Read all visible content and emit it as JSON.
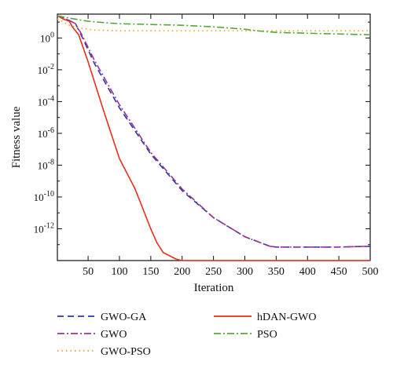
{
  "chart_data": {
    "type": "line",
    "title": "",
    "xlabel": "Iteration",
    "ylabel": "Fitness value",
    "yscale": "log",
    "xlim": [
      1,
      500
    ],
    "ylim_exponent": [
      -14,
      1.5
    ],
    "x_ticks": [
      50,
      100,
      150,
      200,
      250,
      300,
      350,
      400,
      450,
      500
    ],
    "y_ticks": [
      {
        "exp": 0,
        "base": "10",
        "power": "0"
      },
      {
        "exp": -2,
        "base": "10",
        "power": "-2"
      },
      {
        "exp": -4,
        "base": "10",
        "power": "-4"
      },
      {
        "exp": -6,
        "base": "10",
        "power": "-6"
      },
      {
        "exp": -8,
        "base": "10",
        "power": "-8"
      },
      {
        "exp": -10,
        "base": "10",
        "power": "-10"
      },
      {
        "exp": -12,
        "base": "10",
        "power": "-12"
      }
    ],
    "grid": false,
    "legend_position": "bottom, outside plot area, two columns",
    "series": [
      {
        "name": "GWO-GA",
        "color": "#2b3aa8",
        "dash": "8,5",
        "x": [
          1,
          20,
          30,
          40,
          60,
          80,
          100,
          150,
          200,
          250,
          300,
          340,
          350,
          400,
          450,
          500
        ],
        "log10_y": [
          1.4,
          1.1,
          0.9,
          0.1,
          -1.6,
          -3.0,
          -4.4,
          -7.3,
          -9.6,
          -11.3,
          -12.5,
          -13.1,
          -13.15,
          -13.15,
          -13.15,
          -13.1
        ]
      },
      {
        "name": "GWO",
        "color": "#a0309a",
        "dash": "9,3,2,3",
        "x": [
          1,
          20,
          30,
          40,
          60,
          80,
          100,
          150,
          200,
          250,
          300,
          340,
          350,
          400,
          450,
          500
        ],
        "log10_y": [
          1.4,
          1.1,
          0.9,
          0.2,
          -1.4,
          -2.8,
          -4.2,
          -7.2,
          -9.5,
          -11.3,
          -12.5,
          -13.1,
          -13.15,
          -13.15,
          -13.15,
          -13.1
        ]
      },
      {
        "name": "GWO-PSO",
        "color": "#f0a020",
        "dash": "1.5,4",
        "x": [
          1,
          20,
          40,
          60,
          100,
          150,
          200,
          250,
          300,
          350,
          400,
          450,
          500
        ],
        "log10_y": [
          1.2,
          0.8,
          0.6,
          0.5,
          0.45,
          0.45,
          0.45,
          0.45,
          0.45,
          0.45,
          0.45,
          0.45,
          0.45
        ]
      },
      {
        "name": "hDAN-GWO",
        "color": "#e8301a",
        "dash": "",
        "x": [
          1,
          10,
          20,
          25,
          35,
          50,
          75,
          100,
          125,
          150,
          160,
          170,
          175,
          190,
          200,
          500
        ],
        "log10_y": [
          1.4,
          1.2,
          1.05,
          0.7,
          0.2,
          -1.5,
          -4.6,
          -7.6,
          -9.5,
          -12.0,
          -12.9,
          -13.5,
          -13.6,
          -13.9,
          -14.0,
          -14.0
        ]
      },
      {
        "name": "PSO",
        "color": "#55aa3a",
        "dash": "9,3,2,3",
        "x": [
          1,
          20,
          50,
          80,
          100,
          150,
          200,
          250,
          300,
          320,
          350,
          400,
          450,
          500
        ],
        "log10_y": [
          1.4,
          1.25,
          1.05,
          0.95,
          0.9,
          0.85,
          0.8,
          0.7,
          0.55,
          0.45,
          0.35,
          0.3,
          0.25,
          0.2
        ]
      }
    ],
    "legend": [
      {
        "name": "GWO-GA",
        "series": 0
      },
      {
        "name": "hDAN-GWO",
        "series": 3
      },
      {
        "name": "GWO",
        "series": 1
      },
      {
        "name": "PSO",
        "series": 4
      },
      {
        "name": "GWO-PSO",
        "series": 2
      }
    ]
  }
}
